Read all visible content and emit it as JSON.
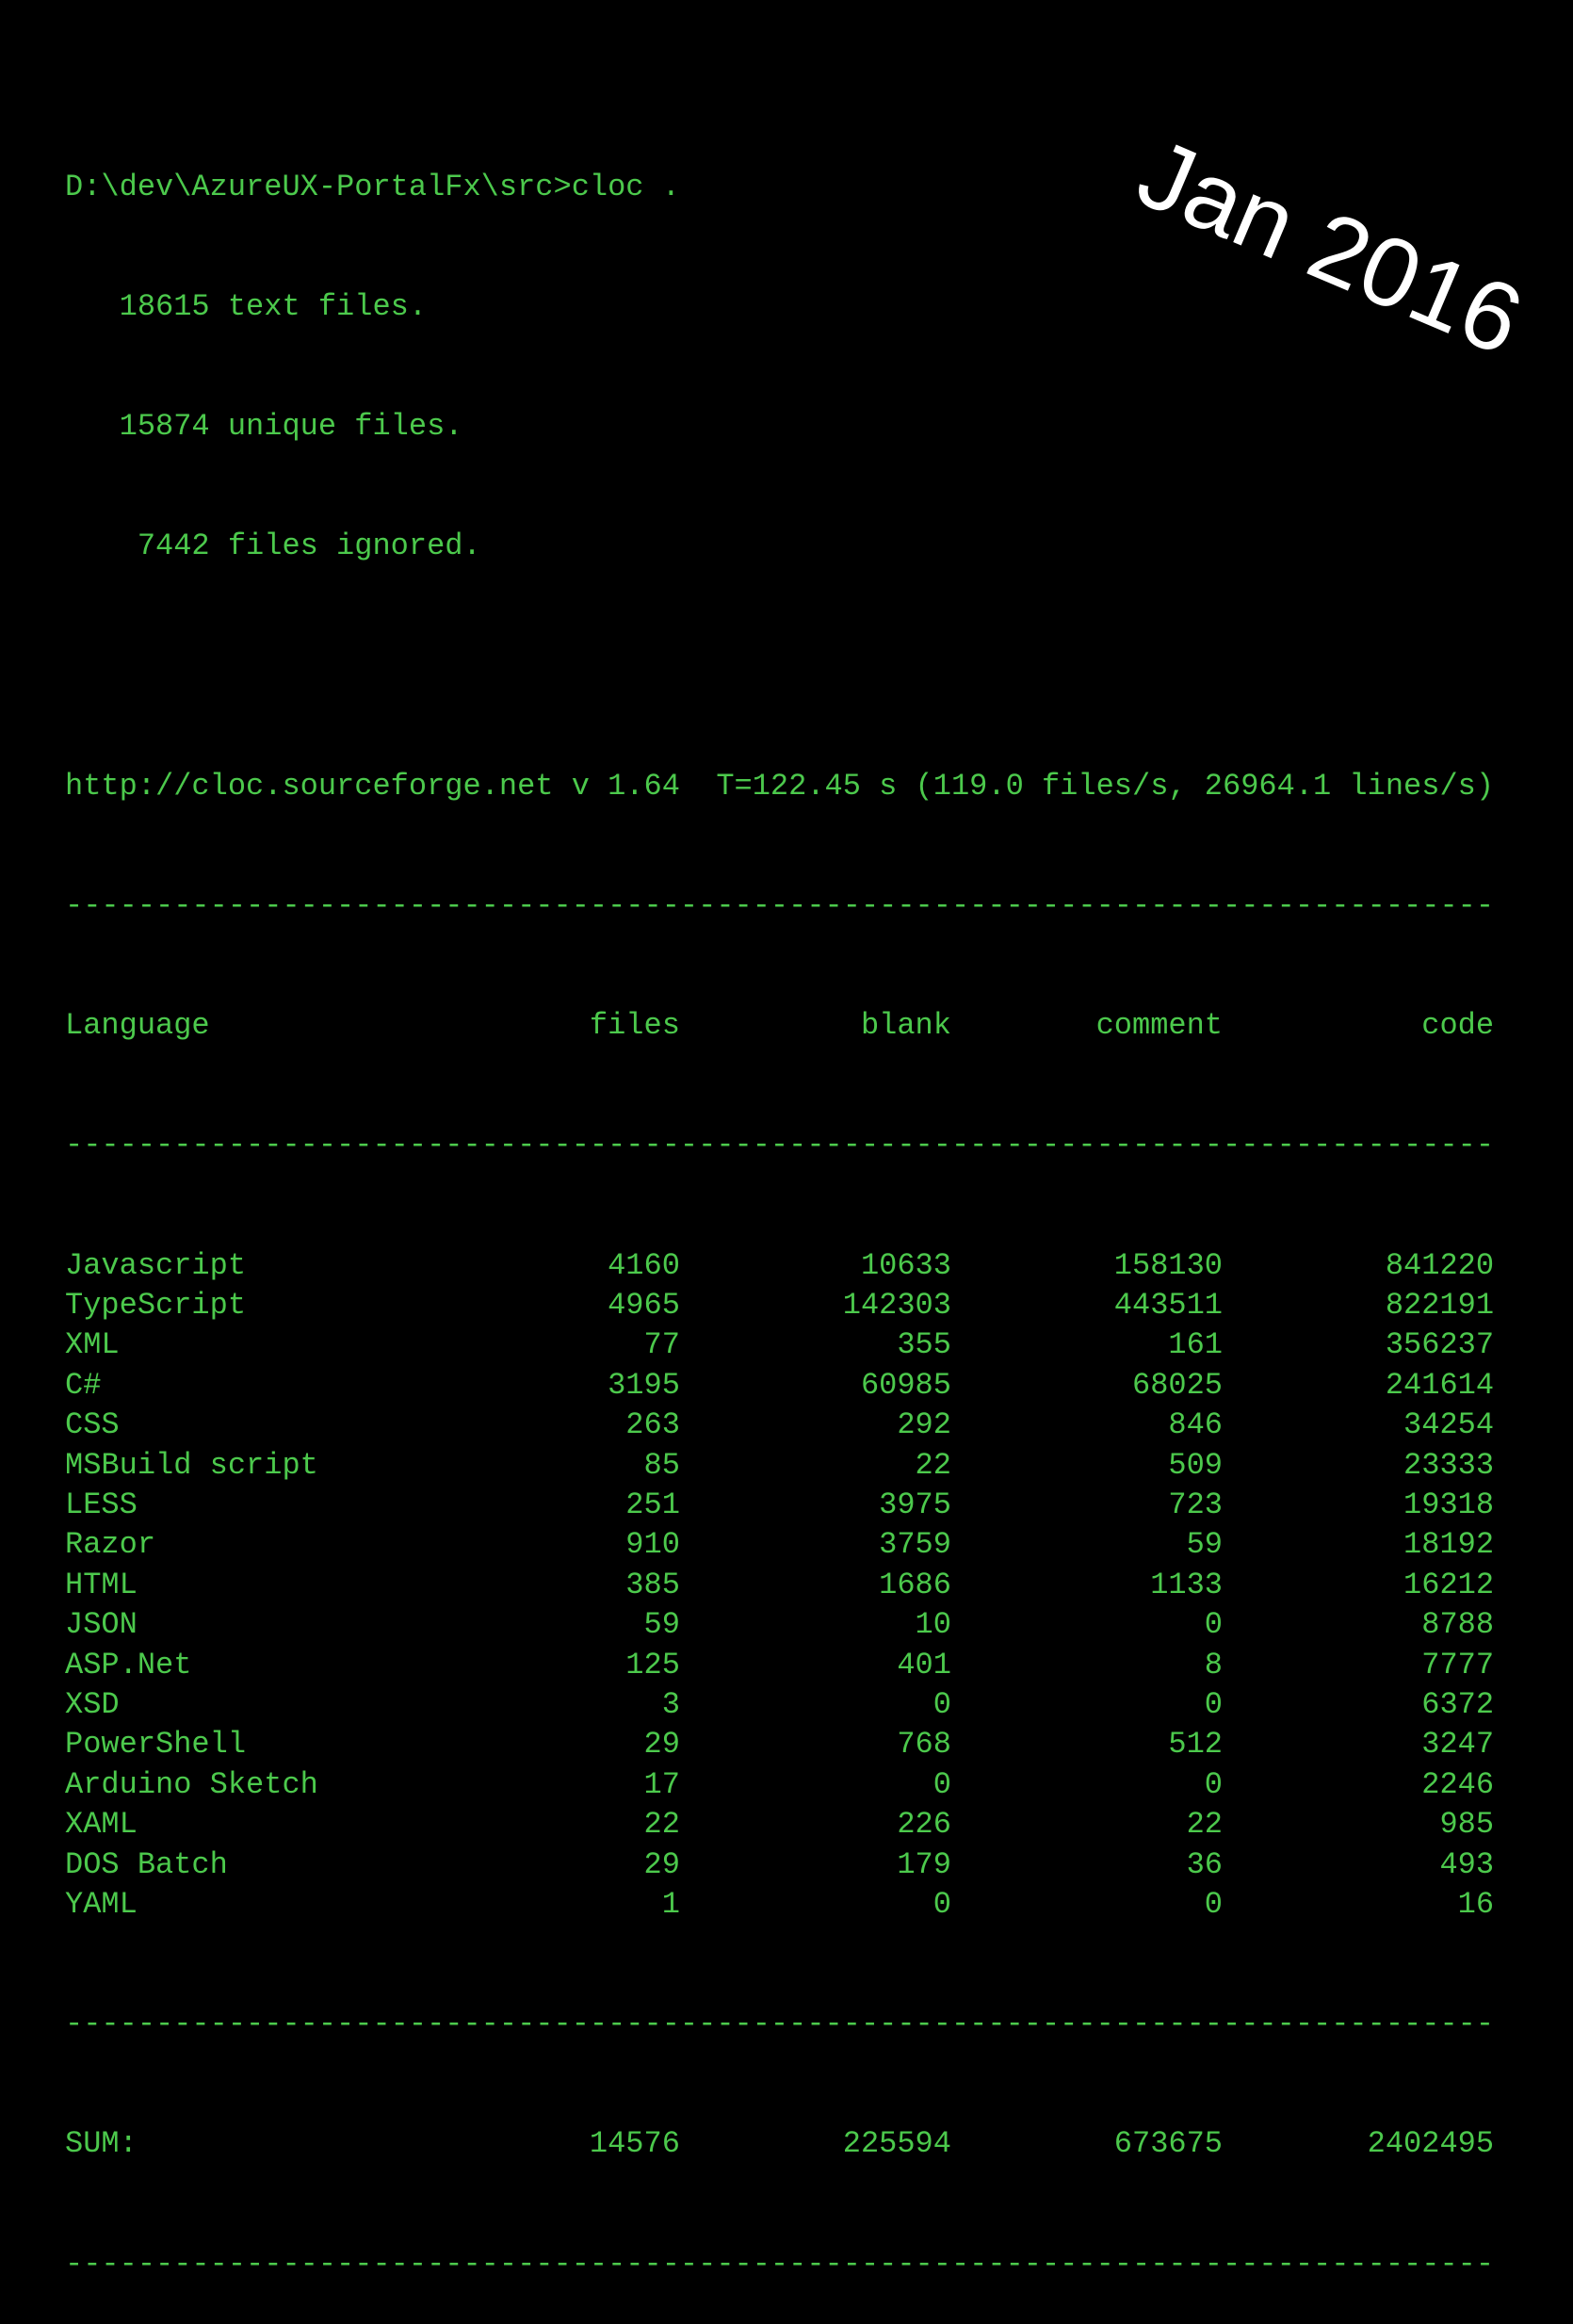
{
  "terminal": {
    "command_line": "D:\\dev\\AzureUX-PortalFx\\src>cloc .",
    "summary_lines": [
      "   18615 text files.",
      "   15874 unique files.",
      "    7442 files ignored."
    ],
    "info_line": "http://cloc.sourceforge.net v 1.64  T=122.45 s (119.0 files/s, 26964.1 lines/s)",
    "separator": "-------------------------------------------------------------------------------",
    "table": {
      "headers": [
        "Language",
        "files",
        "blank",
        "comment",
        "code"
      ],
      "rows": [
        [
          "Javascript",
          "4160",
          "10633",
          "158130",
          "841220"
        ],
        [
          "TypeScript",
          "4965",
          "142303",
          "443511",
          "822191"
        ],
        [
          "XML",
          "77",
          "355",
          "161",
          "356237"
        ],
        [
          "C#",
          "3195",
          "60985",
          "68025",
          "241614"
        ],
        [
          "CSS",
          "263",
          "292",
          "846",
          "34254"
        ],
        [
          "MSBuild script",
          "85",
          "22",
          "509",
          "23333"
        ],
        [
          "LESS",
          "251",
          "3975",
          "723",
          "19318"
        ],
        [
          "Razor",
          "910",
          "3759",
          "59",
          "18192"
        ],
        [
          "HTML",
          "385",
          "1686",
          "1133",
          "16212"
        ],
        [
          "JSON",
          "59",
          "10",
          "0",
          "8788"
        ],
        [
          "ASP.Net",
          "125",
          "401",
          "8",
          "7777"
        ],
        [
          "XSD",
          "3",
          "0",
          "0",
          "6372"
        ],
        [
          "PowerShell",
          "29",
          "768",
          "512",
          "3247"
        ],
        [
          "Arduino Sketch",
          "17",
          "0",
          "0",
          "2246"
        ],
        [
          "XAML",
          "22",
          "226",
          "22",
          "985"
        ],
        [
          "DOS Batch",
          "29",
          "179",
          "36",
          "493"
        ],
        [
          "YAML",
          "1",
          "0",
          "0",
          "16"
        ]
      ],
      "sum": [
        "SUM:",
        "14576",
        "225594",
        "673675",
        "2402495"
      ]
    },
    "text_color": "#4cc94c"
  },
  "overlay": {
    "date_label": "Jan 2016",
    "color": "#ffffff"
  }
}
